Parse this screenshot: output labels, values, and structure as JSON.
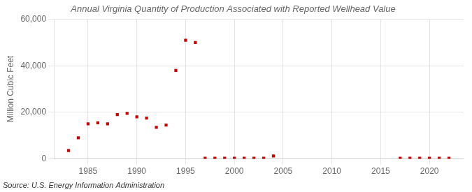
{
  "chart_data": {
    "type": "scatter",
    "title": "Annual Virginia Quantity of Production Associated with Reported Wellhead Value",
    "ylabel": "Million Cubic Feet",
    "annotations": [
      "Source: U.S. Energy Information Administration"
    ],
    "x": [
      1983,
      1984,
      1985,
      1986,
      1987,
      1988,
      1989,
      1990,
      1991,
      1992,
      1993,
      1994,
      1995,
      1996,
      1997,
      1998,
      1999,
      2000,
      2001,
      2002,
      2003,
      2004,
      2017,
      2018,
      2019,
      2020,
      2021,
      2022
    ],
    "values": [
      3500,
      9000,
      15000,
      15500,
      15000,
      19000,
      19500,
      18000,
      17500,
      13500,
      14500,
      38000,
      51000,
      50000,
      200,
      200,
      200,
      200,
      200,
      200,
      200,
      1200,
      200,
      200,
      200,
      200,
      200,
      200
    ],
    "color": "#cc0000",
    "marker": "square",
    "xlim": [
      1981.5,
      2023.5
    ],
    "xticks": [
      1985,
      1990,
      1995,
      2000,
      2005,
      2010,
      2015,
      2020
    ],
    "ylim": [
      0,
      60000
    ],
    "yticks": [
      0,
      {
        "value": 20000,
        "label": "20,000"
      },
      {
        "value": 40000,
        "label": "40,000"
      },
      {
        "value": 60000,
        "label": "60,000"
      }
    ],
    "grid": true
  }
}
